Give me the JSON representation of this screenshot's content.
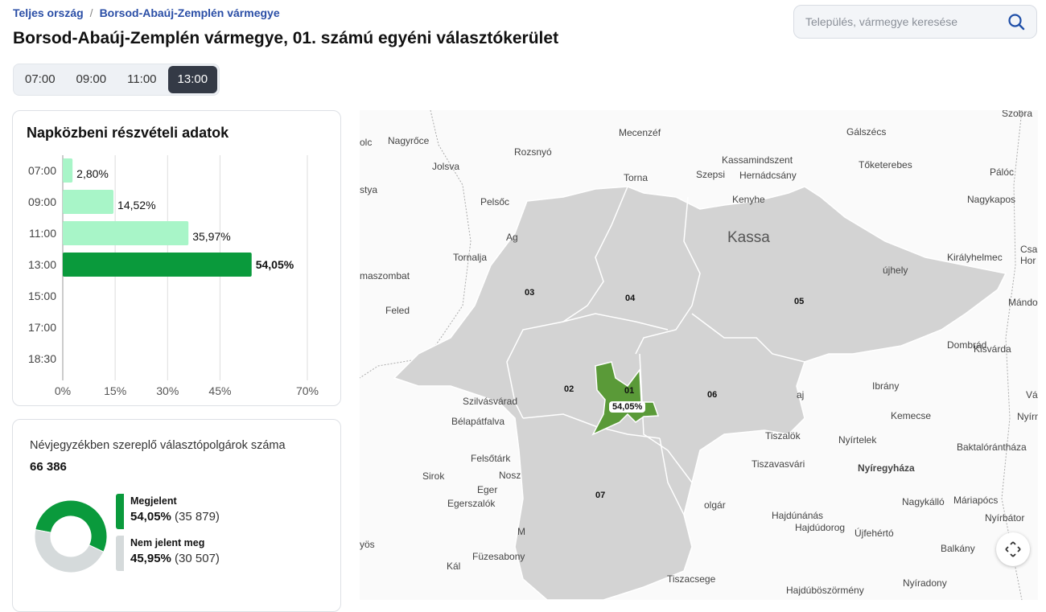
{
  "breadcrumb": [
    "Teljes ország",
    "Borsod-Abaúj-Zemplén vármegye"
  ],
  "title": "Borsod-Abaúj-Zemplén vármegye, 01. számú egyéni választókerület",
  "search": {
    "placeholder": "Település, vármegye keresése",
    "icon": "search-icon"
  },
  "times": [
    "07:00",
    "09:00",
    "11:00",
    "13:00"
  ],
  "active_time": "13:00",
  "turnout_card": {
    "title": "Napközbeni részvételi adatok"
  },
  "chart_data": {
    "type": "bar",
    "orientation": "horizontal",
    "title": "Napközbeni részvételi adatok",
    "categories": [
      "07:00",
      "09:00",
      "11:00",
      "13:00",
      "15:00",
      "17:00",
      "18:30"
    ],
    "values": [
      2.8,
      14.52,
      35.97,
      54.05,
      null,
      null,
      null
    ],
    "labels": [
      "2,80%",
      "14,52%",
      "35,97%",
      "54,05%",
      "",
      "",
      ""
    ],
    "xticks": [
      "0%",
      "15%",
      "30%",
      "45%",
      "70%"
    ],
    "xtick_values": [
      0,
      15,
      30,
      45,
      70
    ],
    "xlim": [
      0,
      70
    ],
    "grid": true,
    "colors": {
      "past": "#a8f5c8",
      "current": "#0a9a3c"
    }
  },
  "voters_card": {
    "label": "Névjegyzékben szereplő választópolgárok száma",
    "total": "66 386",
    "legend": [
      {
        "name": "Megjelent",
        "pct": "54,05%",
        "count": "(35 879)",
        "value": 54.05,
        "color": "#0a9a3c"
      },
      {
        "name": "Nem jelent meg",
        "pct": "45,95%",
        "count": "(30 507)",
        "value": 45.95,
        "color": "#d5dadb"
      }
    ]
  },
  "map": {
    "district_color": "#d3d3d3",
    "selected_color": "#5a9a38",
    "selected_label": "54,05%",
    "districts": [
      "01",
      "02",
      "03",
      "04",
      "05",
      "06",
      "07"
    ],
    "places": [
      {
        "n": "Kassa",
        "big": true
      },
      {
        "n": "Nagyrőce"
      },
      {
        "n": "olc"
      },
      {
        "n": "Rozsnyó"
      },
      {
        "n": "Mecenzéf"
      },
      {
        "n": "Gálszécs"
      },
      {
        "n": "Szobra"
      },
      {
        "n": "Jolsva"
      },
      {
        "n": "Kassamindszent"
      },
      {
        "n": "Hernádcsány"
      },
      {
        "n": "Tőketerebes"
      },
      {
        "n": "Pálóc"
      },
      {
        "n": "Torna"
      },
      {
        "n": "Szepsi"
      },
      {
        "n": "stya"
      },
      {
        "n": "Pelsőc"
      },
      {
        "n": "Kenyhe"
      },
      {
        "n": "Nagykapos"
      },
      {
        "n": "Ag"
      },
      {
        "n": "Tornalja"
      },
      {
        "n": "Királyhelmec"
      },
      {
        "n": "Csa"
      },
      {
        "n": "Hor"
      },
      {
        "n": "újhely"
      },
      {
        "n": "maszombat"
      },
      {
        "n": "Feled"
      },
      {
        "n": "Mándo"
      },
      {
        "n": "Dombrád"
      },
      {
        "n": "Kisvárda"
      },
      {
        "n": "Ibrány"
      },
      {
        "n": "Vá"
      },
      {
        "n": "Szilvásvárad"
      },
      {
        "n": "aj"
      },
      {
        "n": "Bélapátfalva"
      },
      {
        "n": "Kemecse"
      },
      {
        "n": "Nyírma"
      },
      {
        "n": "Tiszalök"
      },
      {
        "n": "Nyírtelek"
      },
      {
        "n": "Baktalórántháza"
      },
      {
        "n": "Felsőtárk"
      },
      {
        "n": "Tiszavasvári"
      },
      {
        "n": "Sirok"
      },
      {
        "n": "Nosz"
      },
      {
        "n": "Nyíregyháza",
        "bold": true
      },
      {
        "n": "Eger"
      },
      {
        "n": "Egerszalók"
      },
      {
        "n": "Nagykálló"
      },
      {
        "n": "Máriapócs"
      },
      {
        "n": "Nyírbátor"
      },
      {
        "n": "Hajdúnánás"
      },
      {
        "n": "Hajdúdorog"
      },
      {
        "n": "Újfehértó"
      },
      {
        "n": "M"
      },
      {
        "n": "olgár"
      },
      {
        "n": "yös"
      },
      {
        "n": "Füzesabony"
      },
      {
        "n": "Balkány"
      },
      {
        "n": "Kál"
      },
      {
        "n": "Tiszacsege"
      },
      {
        "n": "Hajdúböszörmény"
      },
      {
        "n": "Nyíradony"
      }
    ]
  }
}
